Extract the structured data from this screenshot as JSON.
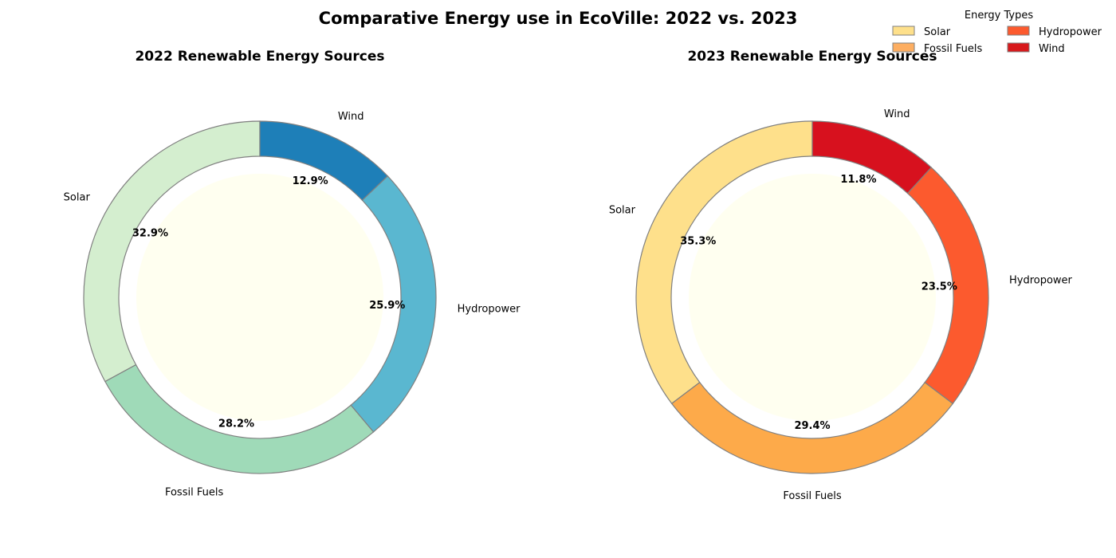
{
  "figure": {
    "title": "Comparative Energy use in EcoVille: 2022 vs. 2023"
  },
  "legend": {
    "title": "Energy Types",
    "placement": "top-right",
    "entries": [
      {
        "label": "Solar",
        "color": "#fee08b"
      },
      {
        "label": "Fossil Fuels",
        "color": "#fdae61"
      },
      {
        "label": "Hydropower",
        "color": "#fc5a2e"
      },
      {
        "label": "Wind",
        "color": "#d7191c"
      }
    ]
  },
  "chart_data": [
    {
      "type": "pie",
      "style": "donut",
      "title": "2022 Renewable Energy Sources",
      "center_fill": "#fffff0",
      "slices": [
        {
          "label": "Solar",
          "value": 32.9,
          "pct_label": "32.9%",
          "color": "#d4eecf"
        },
        {
          "label": "Fossil Fuels",
          "value": 28.2,
          "pct_label": "28.2%",
          "color": "#9fdab8"
        },
        {
          "label": "Hydropower",
          "value": 25.9,
          "pct_label": "25.9%",
          "color": "#5ab7d0"
        },
        {
          "label": "Wind",
          "value": 12.9,
          "pct_label": "12.9%",
          "color": "#1e7fb8"
        }
      ]
    },
    {
      "type": "pie",
      "style": "donut",
      "title": "2023 Renewable Energy Sources",
      "center_fill": "#fffff0",
      "slices": [
        {
          "label": "Solar",
          "value": 35.3,
          "pct_label": "35.3%",
          "color": "#fee08b"
        },
        {
          "label": "Fossil Fuels",
          "value": 29.4,
          "pct_label": "29.4%",
          "color": "#fdaa4a"
        },
        {
          "label": "Hydropower",
          "value": 23.5,
          "pct_label": "23.5%",
          "color": "#fc5a2e"
        },
        {
          "label": "Wind",
          "value": 11.8,
          "pct_label": "11.8%",
          "color": "#d7111e"
        }
      ]
    }
  ]
}
